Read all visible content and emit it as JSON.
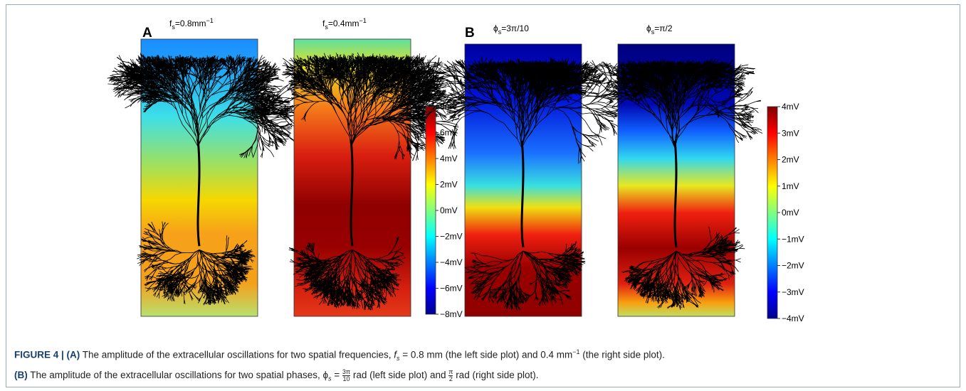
{
  "panelA": {
    "label": "A",
    "plots": [
      {
        "symbol": "f",
        "subscript": "s",
        "text": "=0.8mm",
        "superscript": "−1"
      },
      {
        "symbol": "f",
        "subscript": "s",
        "text": "=0.4mm",
        "superscript": "−1"
      }
    ],
    "colorbar": [
      "8mV",
      "6mV",
      "4mV",
      "2mV",
      "0mV",
      "−2mV",
      "−4mV",
      "−6mV",
      "−8mV"
    ]
  },
  "panelB": {
    "label": "B",
    "plots": [
      {
        "symbol": "ϕ",
        "subscript": "s",
        "text": "=3π/10"
      },
      {
        "symbol": "ϕ",
        "subscript": "s",
        "text": "=π/2"
      }
    ],
    "colorbar": [
      "4mV",
      "3mV",
      "2mV",
      "1mV",
      "0mV",
      "−1mV",
      "−2mV",
      "−3mV",
      "−4mV"
    ]
  },
  "caption": {
    "line1": [
      "FIGURE 4 | (A)",
      " The amplitude of the extracellular oscillations for two spatial frequencies, ",
      "f",
      "s",
      " = 0.8 mm (the left side plot) and 0.4 mm",
      "−1",
      " (the right side plot)."
    ],
    "line2": [
      "(B)",
      " The amplitude of the extracellular oscillations for two spatial phases, ϕ",
      "s",
      " = ",
      "3π",
      "10",
      " rad (left side plot) and ",
      "π",
      "2",
      " rad (right side plot)."
    ]
  }
}
